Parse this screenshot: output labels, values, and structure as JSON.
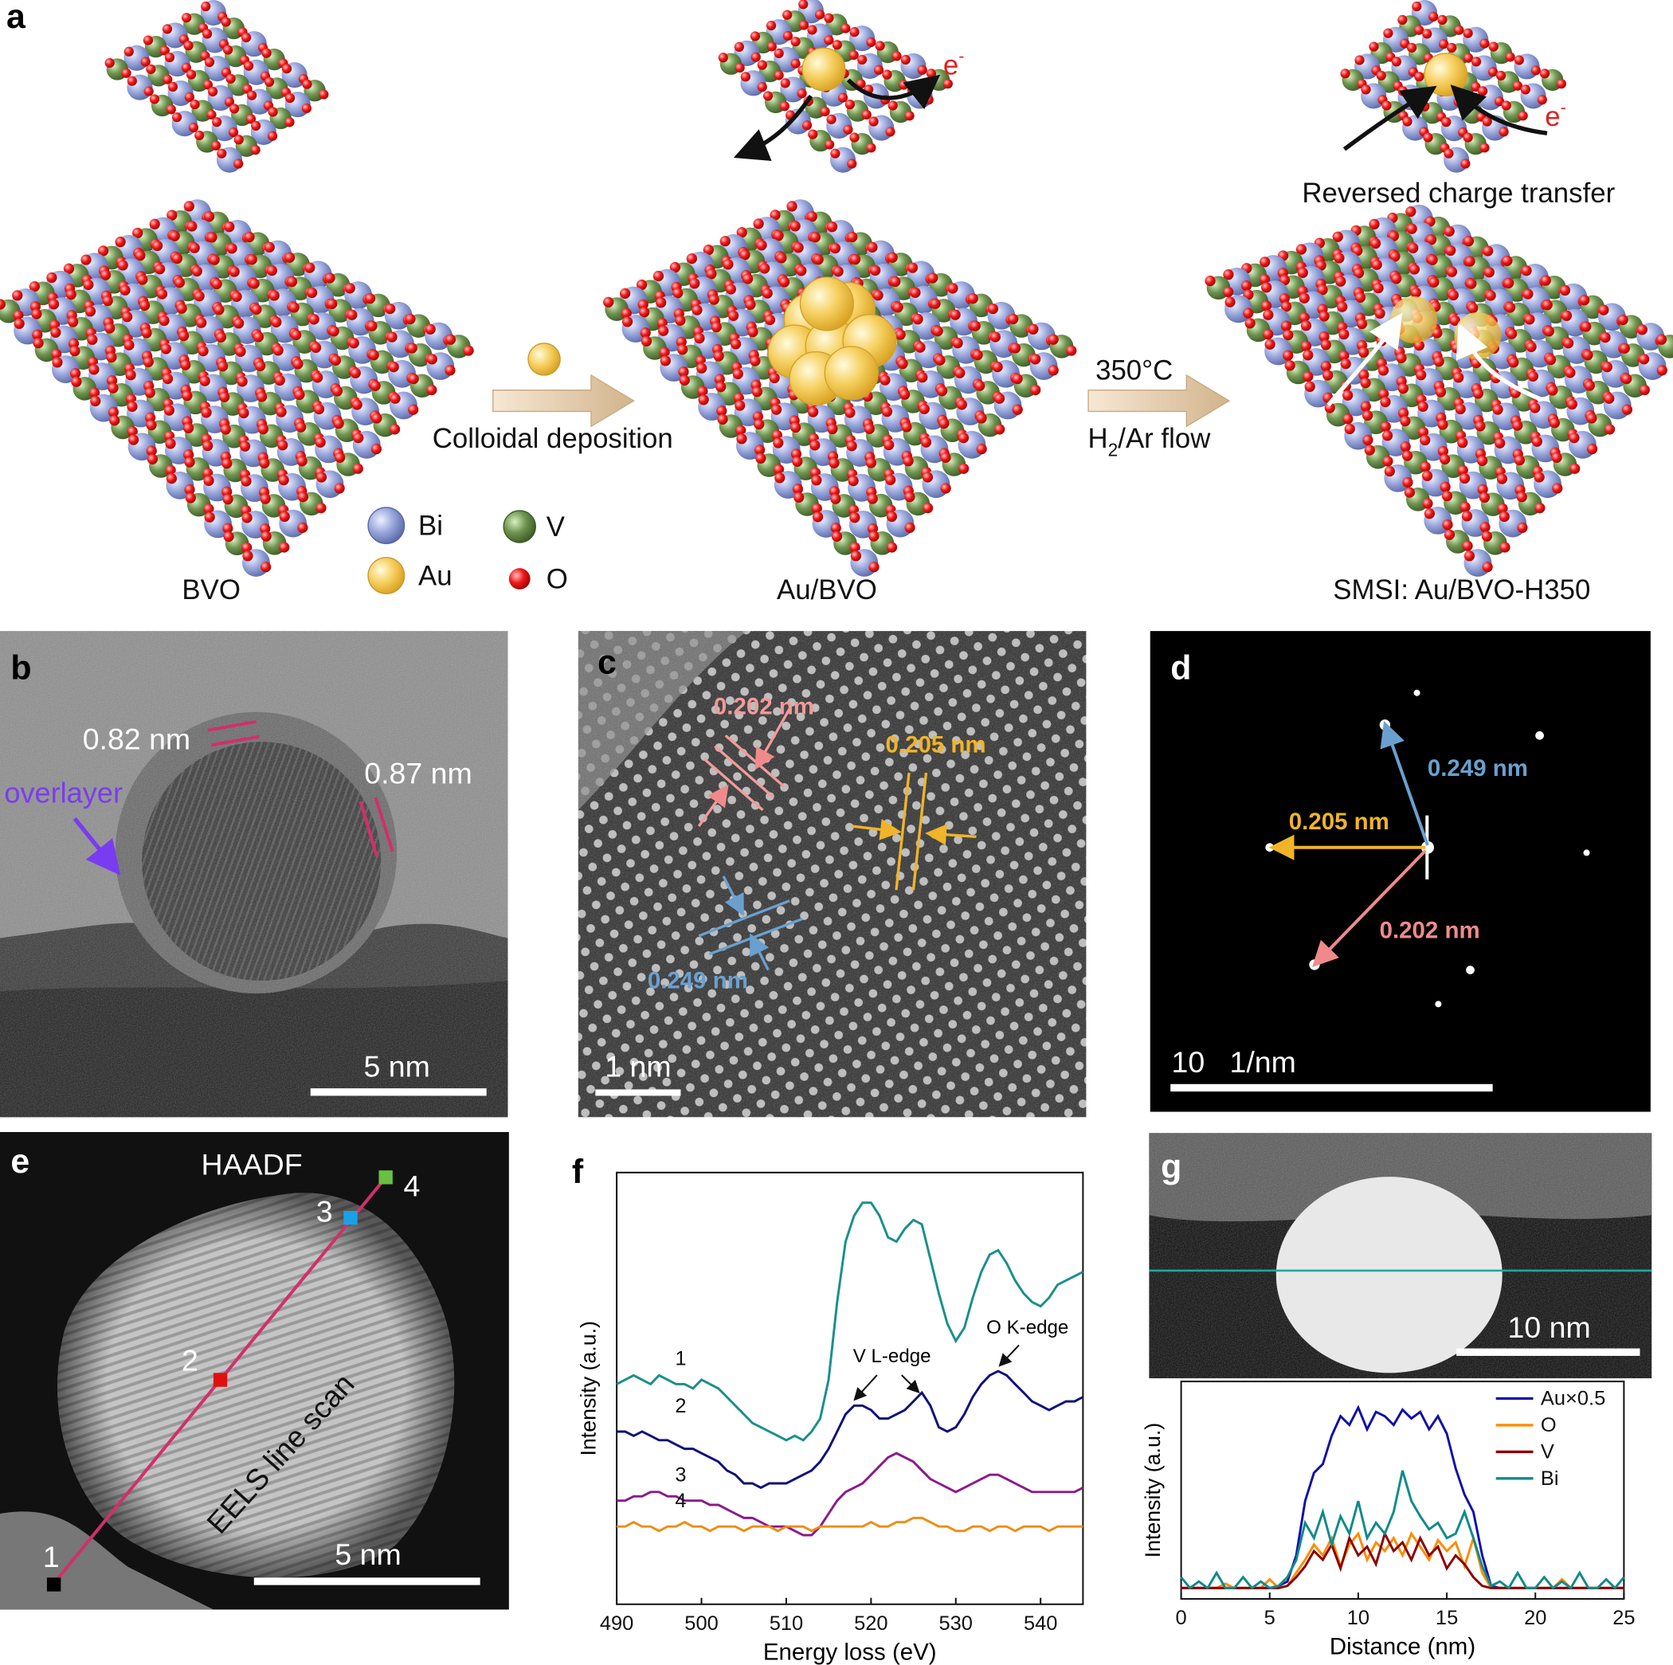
{
  "panel_a": {
    "label": "a",
    "captions": [
      "BVO",
      "Au/BVO",
      "SMSI: Au/BVO-H350"
    ],
    "step1": "Colloidal deposition",
    "step2_temp": "350°C",
    "step2_gas": [
      "H",
      "2",
      "/Ar flow"
    ],
    "electron": [
      "e",
      "-"
    ],
    "reversed": "Reversed charge transfer",
    "legend": [
      "Bi",
      "Au",
      "V",
      "O"
    ]
  },
  "panel_b": {
    "label": "b",
    "spacings": [
      "0.82 nm",
      "0.87 nm"
    ],
    "overlayer": "overlayer",
    "scale": "5 nm"
  },
  "panel_c": {
    "label": "c",
    "spacings": [
      "0.202 nm",
      "0.205 nm",
      "0.249 nm"
    ],
    "scale": "1 nm"
  },
  "panel_d": {
    "label": "d",
    "spacings": [
      "0.249 nm",
      "0.205 nm",
      "0.202 nm"
    ],
    "scale": "10   1/nm"
  },
  "panel_e": {
    "label": "e",
    "title": "HAADF",
    "points": [
      "1",
      "2",
      "3",
      "4"
    ],
    "scan": "EELS line scan",
    "scale": "5 nm"
  },
  "panel_g": {
    "label": "g",
    "scale": "10 nm"
  },
  "chart_data": [
    {
      "type": "line",
      "panel_label": "f",
      "xlabel": "Energy loss (eV)",
      "ylabel": "Intensity (a.u.)",
      "legend": "inline",
      "annotations": [
        "V L-edge",
        "O K-edge"
      ],
      "x": [
        490,
        491,
        492,
        493,
        494,
        495,
        496,
        497,
        498,
        499,
        500,
        501,
        502,
        503,
        504,
        505,
        506,
        507,
        508,
        509,
        510,
        511,
        512,
        513,
        514,
        515,
        516,
        517,
        518,
        519,
        520,
        521,
        522,
        523,
        524,
        525,
        526,
        527,
        528,
        529,
        530,
        531,
        532,
        533,
        534,
        535,
        536,
        537,
        538,
        539,
        540,
        541,
        542,
        543,
        544,
        545
      ],
      "xlim": [
        490,
        545
      ],
      "xticks": [
        490,
        500,
        510,
        520,
        530,
        540
      ],
      "ylim": [
        0,
        100
      ],
      "series": [
        {
          "name": "1",
          "color": "#1a8f8a",
          "values": [
            51,
            52,
            53,
            52,
            51,
            53,
            52,
            51,
            51,
            50,
            52,
            51,
            50,
            48,
            46,
            44,
            42,
            41,
            40,
            39,
            38,
            39,
            38,
            40,
            43,
            52,
            70,
            84,
            90,
            93,
            93,
            90,
            85,
            84,
            87,
            89,
            88,
            80,
            72,
            65,
            61,
            64,
            71,
            77,
            81,
            82,
            79,
            75,
            72,
            70,
            69,
            71,
            74,
            75,
            76,
            77
          ]
        },
        {
          "name": "2",
          "color": "#10107a",
          "values": [
            40,
            40,
            39,
            40,
            39,
            38,
            38,
            37,
            36,
            36,
            35,
            34,
            33,
            31,
            30,
            28,
            28,
            27,
            28,
            28,
            28,
            29,
            30,
            31,
            33,
            36,
            40,
            44,
            46,
            46,
            45,
            43,
            43,
            44,
            45,
            47,
            49,
            46,
            41,
            40,
            41,
            44,
            48,
            51,
            53,
            54,
            53,
            51,
            49,
            47,
            46,
            45,
            46,
            47,
            47,
            48
          ]
        },
        {
          "name": "3",
          "color": "#8b1a8b",
          "values": [
            24,
            24,
            25,
            25,
            26,
            26,
            25,
            25,
            24,
            24,
            24,
            23,
            23,
            22,
            21,
            20,
            20,
            19,
            18,
            18,
            18,
            17,
            16,
            16,
            18,
            21,
            24,
            26,
            27,
            28,
            30,
            32,
            34,
            35,
            34,
            33,
            31,
            29,
            28,
            27,
            26,
            27,
            28,
            29,
            30,
            30,
            29,
            28,
            27,
            26,
            26,
            26,
            26,
            26,
            26,
            27
          ]
        },
        {
          "name": "4",
          "color": "#f08c10",
          "values": [
            18,
            18,
            19,
            18,
            18,
            17,
            18,
            18,
            19,
            18,
            18,
            17,
            18,
            18,
            18,
            17,
            18,
            18,
            18,
            17,
            18,
            18,
            18,
            17,
            18,
            18,
            18,
            18,
            18,
            18,
            19,
            18,
            18,
            19,
            19,
            20,
            20,
            19,
            18,
            18,
            17,
            17,
            18,
            18,
            17,
            18,
            18,
            17,
            18,
            18,
            18,
            17,
            18,
            18,
            18,
            18
          ]
        }
      ]
    },
    {
      "type": "line",
      "xlabel": "Distance (nm)",
      "ylabel": "Intensity (a.u.)",
      "legend": "upper right",
      "x": [
        0,
        0.5,
        1,
        1.5,
        2,
        2.5,
        3,
        3.5,
        4,
        4.5,
        5,
        5.5,
        6,
        6.5,
        7,
        7.5,
        8,
        8.5,
        9,
        9.5,
        10,
        10.5,
        11,
        11.5,
        12,
        12.5,
        13,
        13.5,
        14,
        14.5,
        15,
        15.5,
        16,
        16.5,
        17,
        17.5,
        18,
        18.5,
        19,
        19.5,
        20,
        20.5,
        21,
        21.5,
        22,
        22.5,
        23,
        23.5,
        24,
        24.5,
        25
      ],
      "xlim": [
        0,
        25
      ],
      "xticks": [
        0,
        5,
        10,
        15,
        20,
        25
      ],
      "ylim": [
        0,
        100
      ],
      "series": [
        {
          "name": "Au×0.5",
          "color": "#1010a8",
          "values": [
            5,
            5,
            5,
            5,
            5,
            5,
            5,
            5,
            5,
            5,
            5,
            6,
            8,
            20,
            45,
            58,
            62,
            75,
            84,
            80,
            88,
            78,
            86,
            84,
            80,
            87,
            83,
            86,
            78,
            84,
            76,
            60,
            48,
            40,
            20,
            6,
            5,
            5,
            5,
            5,
            5,
            5,
            5,
            5,
            5,
            5,
            5,
            5,
            5,
            5,
            5
          ]
        },
        {
          "name": "O",
          "color": "#ff8c00",
          "values": [
            5,
            5,
            5,
            5,
            5,
            7,
            5,
            5,
            5,
            5,
            9,
            5,
            6,
            12,
            18,
            25,
            20,
            28,
            15,
            25,
            30,
            18,
            26,
            22,
            28,
            20,
            30,
            24,
            18,
            27,
            22,
            26,
            15,
            28,
            12,
            5,
            5,
            5,
            5,
            5,
            5,
            5,
            5,
            9,
            5,
            5,
            5,
            5,
            5,
            5,
            5
          ]
        },
        {
          "name": "V",
          "color": "#8b0000",
          "values": [
            5,
            5,
            5,
            5,
            5,
            5,
            5,
            5,
            5,
            5,
            5,
            5,
            6,
            10,
            15,
            22,
            18,
            25,
            14,
            28,
            20,
            24,
            16,
            30,
            22,
            26,
            18,
            28,
            20,
            24,
            14,
            20,
            16,
            10,
            6,
            5,
            5,
            5,
            5,
            5,
            5,
            5,
            5,
            5,
            5,
            5,
            5,
            5,
            5,
            5,
            5
          ]
        },
        {
          "name": "Bi",
          "color": "#108a8a",
          "values": [
            10,
            5,
            8,
            5,
            12,
            5,
            5,
            10,
            5,
            8,
            5,
            6,
            10,
            18,
            35,
            28,
            40,
            25,
            38,
            30,
            45,
            28,
            35,
            30,
            40,
            59,
            45,
            38,
            32,
            35,
            28,
            30,
            40,
            28,
            15,
            6,
            8,
            5,
            12,
            5,
            5,
            10,
            5,
            8,
            5,
            12,
            5,
            5,
            9,
            5,
            10
          ]
        }
      ]
    }
  ]
}
